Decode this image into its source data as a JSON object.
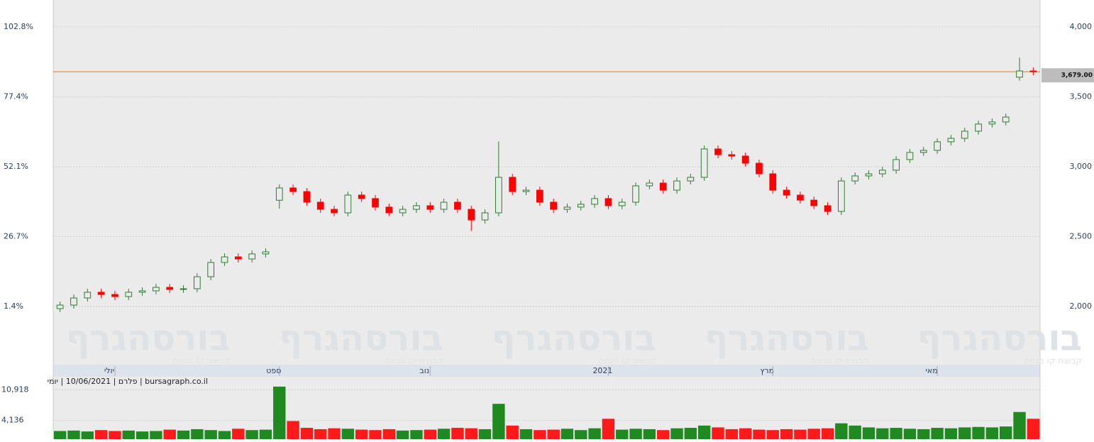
{
  "chart_data": {
    "type": "candlestick",
    "info": "bursagraph.co.il | פלרם | 10/06/2021 | יומי",
    "watermark": "בורסהגרף",
    "watermark_sub": "קבוצת קו מנחה",
    "categories": [
      null,
      null,
      null,
      null,
      "יולי",
      null,
      null,
      null,
      null,
      null,
      null,
      null,
      null,
      null,
      null,
      null,
      "ספט",
      null,
      null,
      null,
      null,
      null,
      null,
      null,
      null,
      null,
      null,
      "נוב",
      null,
      null,
      null,
      null,
      null,
      null,
      null,
      null,
      null,
      null,
      null,
      null,
      "2021",
      null,
      null,
      null,
      null,
      null,
      null,
      null,
      null,
      null,
      null,
      null,
      "מרץ",
      null,
      null,
      null,
      null,
      null,
      null,
      null,
      null,
      null,
      null,
      null,
      "מאי",
      null,
      null,
      null,
      null,
      null,
      null,
      null
    ],
    "open": [
      1985,
      2010,
      2061,
      2102,
      2086,
      2071,
      2102,
      2112,
      2137,
      2122,
      2127,
      2213,
      2315,
      2355,
      2340,
      2376,
      2760,
      2848,
      2822,
      2746,
      2695,
      2670,
      2797,
      2772,
      2711,
      2670,
      2695,
      2721,
      2695,
      2746,
      2695,
      2619,
      2670,
      2924,
      2822,
      2832,
      2746,
      2695,
      2711,
      2731,
      2772,
      2721,
      2746,
      2863,
      2883,
      2832,
      2898,
      2924,
      3127,
      3086,
      3076,
      3025,
      2949,
      2832,
      2797,
      2761,
      2721,
      2680,
      2898,
      2934,
      2949,
      2975,
      3051,
      3102,
      3117,
      3178,
      3203,
      3254,
      3305,
      3320,
      3640,
      3685
    ],
    "high": [
      2035,
      2086,
      2127,
      2127,
      2111,
      2127,
      2137,
      2162,
      2162,
      2152,
      2238,
      2340,
      2380,
      2380,
      2401,
      2416,
      2873,
      2873,
      2847,
      2771,
      2720,
      2822,
      2822,
      2797,
      2736,
      2720,
      2746,
      2746,
      2771,
      2771,
      2720,
      2695,
      3180,
      2949,
      2857,
      2857,
      2771,
      2736,
      2756,
      2797,
      2797,
      2771,
      2888,
      2908,
      2908,
      2923,
      2949,
      3152,
      3152,
      3111,
      3101,
      3050,
      2974,
      2857,
      2822,
      2786,
      2746,
      2923,
      2959,
      2974,
      3000,
      3076,
      3127,
      3142,
      3203,
      3228,
      3279,
      3330,
      3345,
      3380,
      3780,
      3710
    ],
    "low": [
      1960,
      1985,
      2036,
      2061,
      2046,
      2046,
      2077,
      2087,
      2097,
      2097,
      2102,
      2188,
      2290,
      2315,
      2315,
      2351,
      2700,
      2797,
      2721,
      2670,
      2645,
      2645,
      2747,
      2686,
      2645,
      2645,
      2670,
      2670,
      2670,
      2670,
      2540,
      2594,
      2645,
      2797,
      2797,
      2721,
      2670,
      2670,
      2686,
      2706,
      2696,
      2696,
      2721,
      2838,
      2807,
      2807,
      2873,
      2899,
      3061,
      3051,
      3000,
      2924,
      2807,
      2772,
      2736,
      2696,
      2655,
      2655,
      2873,
      2909,
      2924,
      2950,
      3026,
      3077,
      3092,
      3153,
      3178,
      3229,
      3280,
      3295,
      3615,
      3654
    ],
    "close": [
      2010,
      2061,
      2102,
      2086,
      2071,
      2102,
      2112,
      2137,
      2122,
      2127,
      2213,
      2315,
      2355,
      2340,
      2376,
      2391,
      2848,
      2822,
      2746,
      2695,
      2670,
      2797,
      2772,
      2711,
      2670,
      2695,
      2721,
      2695,
      2746,
      2695,
      2619,
      2670,
      2924,
      2822,
      2832,
      2746,
      2695,
      2711,
      2731,
      2772,
      2721,
      2746,
      2863,
      2883,
      2832,
      2898,
      2924,
      3127,
      3086,
      3076,
      3025,
      2949,
      2832,
      2797,
      2761,
      2721,
      2680,
      2898,
      2934,
      2949,
      2975,
      3051,
      3102,
      3117,
      3178,
      3203,
      3254,
      3305,
      3320,
      3355,
      3685,
      3679
    ],
    "volume": [
      1800,
      1900,
      1700,
      2000,
      1800,
      1900,
      1700,
      1800,
      2100,
      1900,
      2200,
      2000,
      1800,
      2300,
      2000,
      2100,
      11600,
      4000,
      2500,
      2200,
      2400,
      2300,
      2100,
      2000,
      2200,
      1900,
      2000,
      2100,
      2300,
      2500,
      2400,
      2200,
      7800,
      3000,
      2200,
      2000,
      2100,
      2300,
      2000,
      2400,
      4500,
      2100,
      2300,
      2200,
      2000,
      2400,
      2500,
      3000,
      2600,
      2200,
      2400,
      2100,
      2000,
      2200,
      2100,
      2300,
      2400,
      3500,
      3000,
      2600,
      2400,
      2500,
      2300,
      2200,
      2500,
      2400,
      2600,
      2700,
      2600,
      2800,
      6000,
      4500
    ],
    "up_color": "#2e7d32",
    "down_color": "#ff0000",
    "ylim": [
      1589,
      4167
    ],
    "yticks": [
      {
        "value": 2000,
        "label": "2,000"
      },
      {
        "value": 2500,
        "label": "2,500"
      },
      {
        "value": 3000,
        "label": "3,000"
      },
      {
        "value": 3500,
        "label": "3,500"
      },
      {
        "value": 4000,
        "label": "4,000"
      }
    ],
    "y2lim": [
      -19.45,
      111.3
    ],
    "y2ticks": [
      {
        "value": 1.4,
        "label": "1.4%"
      },
      {
        "value": 26.7,
        "label": "26.7%"
      },
      {
        "value": 52.1,
        "label": "52.1%"
      },
      {
        "value": 77.4,
        "label": "77.4%"
      },
      {
        "value": 102.8,
        "label": "102.8%"
      }
    ],
    "last": {
      "value": 3679,
      "label": "3,679.00",
      "color": "#e07b1a"
    },
    "vlim": [
      0,
      13000
    ],
    "vticks": [
      {
        "value": 4136,
        "label": "4,136"
      },
      {
        "value": 10918,
        "label": "10,918"
      }
    ],
    "grid": true
  }
}
